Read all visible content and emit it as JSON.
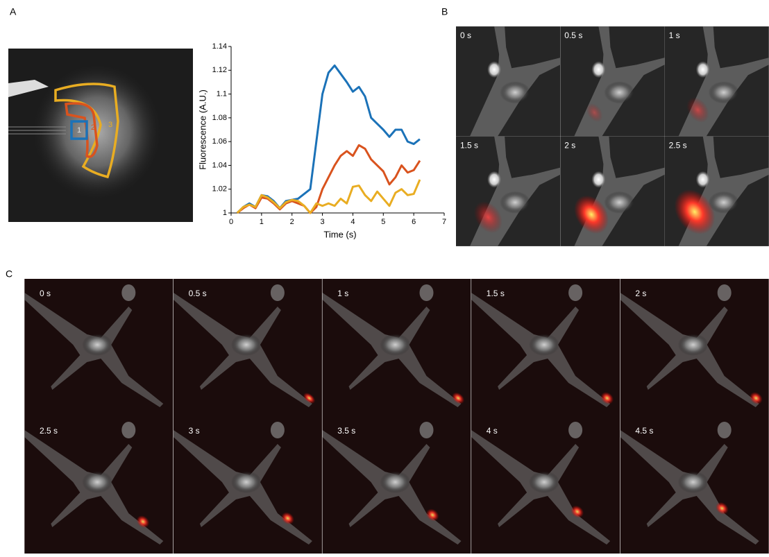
{
  "figure": {
    "panel_labels": [
      "A",
      "B",
      "C"
    ],
    "B_frames": [
      "0 s",
      "0.5 s",
      "1 s",
      "1.5 s",
      "2 s",
      "2.5 s"
    ],
    "C_frames": [
      "0 s",
      "0.5 s",
      "1 s",
      "1.5 s",
      "2 s",
      "2.5 s",
      "3 s",
      "3.5 s",
      "4 s",
      "4.5 s"
    ]
  },
  "chart_data": {
    "type": "line",
    "x_label": "Time (s)",
    "y_label": "Fluorescence (A.U.)",
    "x": [
      0.2,
      0.4,
      0.6,
      0.8,
      1.0,
      1.2,
      1.4,
      1.6,
      1.8,
      2.0,
      2.2,
      2.4,
      2.6,
      2.8,
      3.0,
      3.2,
      3.4,
      3.6,
      3.8,
      4.0,
      4.2,
      4.4,
      4.6,
      4.8,
      5.0,
      5.2,
      5.4,
      5.6,
      5.8,
      6.0,
      6.2
    ],
    "series": [
      {
        "name": "1",
        "color": "#1b72b8",
        "values": [
          1.0,
          1.005,
          1.008,
          1.005,
          1.015,
          1.014,
          1.01,
          1.004,
          1.01,
          1.011,
          1.012,
          1.016,
          1.02,
          1.06,
          1.1,
          1.118,
          1.124,
          1.117,
          1.11,
          1.102,
          1.106,
          1.098,
          1.08,
          1.075,
          1.07,
          1.064,
          1.07,
          1.07,
          1.06,
          1.058,
          1.062
        ]
      },
      {
        "name": "2",
        "color": "#d9531e",
        "values": [
          1.0,
          1.004,
          1.007,
          1.004,
          1.013,
          1.012,
          1.008,
          1.003,
          1.008,
          1.01,
          1.008,
          1.006,
          1.0,
          1.005,
          1.02,
          1.03,
          1.04,
          1.048,
          1.052,
          1.048,
          1.057,
          1.054,
          1.045,
          1.04,
          1.035,
          1.024,
          1.03,
          1.04,
          1.034,
          1.036,
          1.044
        ]
      },
      {
        "name": "3",
        "color": "#e9ad22",
        "values": [
          1.0,
          1.005,
          1.007,
          1.005,
          1.015,
          1.013,
          1.009,
          1.004,
          1.009,
          1.011,
          1.01,
          1.006,
          1.0,
          1.008,
          1.006,
          1.008,
          1.006,
          1.012,
          1.008,
          1.022,
          1.023,
          1.015,
          1.01,
          1.018,
          1.012,
          1.006,
          1.017,
          1.02,
          1.015,
          1.016,
          1.028
        ]
      }
    ],
    "xlim": [
      0,
      7
    ],
    "xticks": [
      0,
      1,
      2,
      3,
      4,
      5,
      6,
      7
    ],
    "ylim": [
      1,
      1.14
    ],
    "yticks": [
      1,
      1.02,
      1.04,
      1.06,
      1.08,
      1.1,
      1.12,
      1.14
    ]
  }
}
